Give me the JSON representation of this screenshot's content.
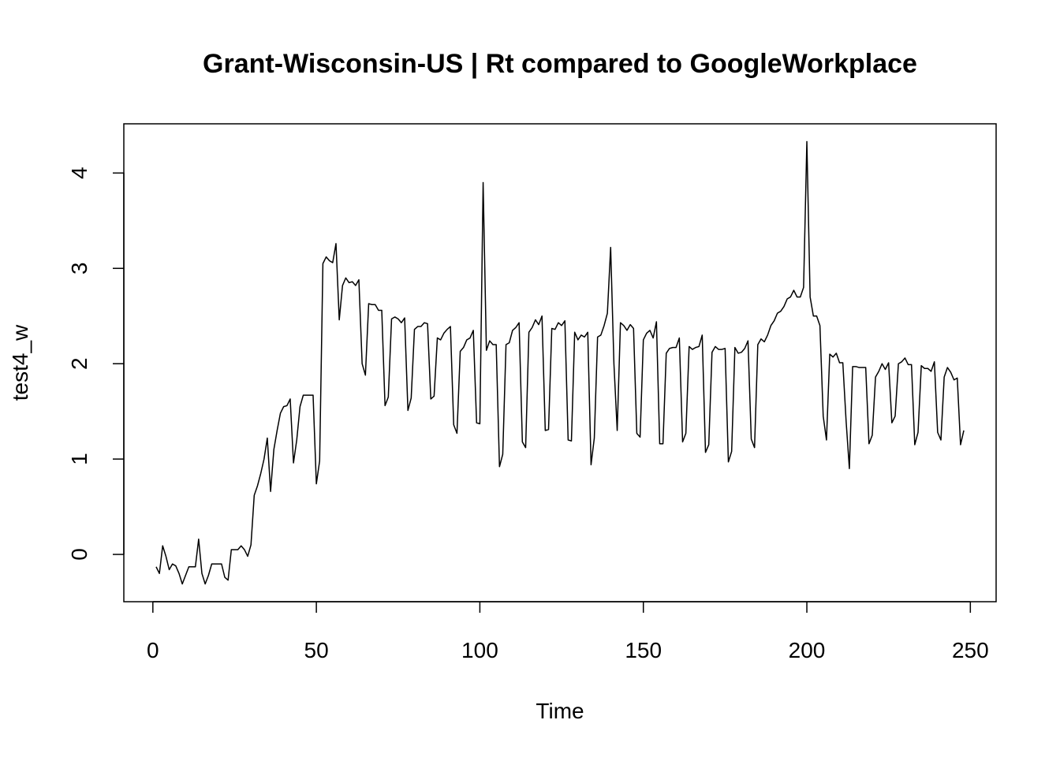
{
  "chart_data": {
    "type": "line",
    "title": "Grant-Wisconsin-US | Rt compared to GoogleWorkplace",
    "x_label": "Time",
    "y_label": "test4_w",
    "color": "#000000",
    "x": [
      1,
      2,
      3,
      4,
      5,
      6,
      7,
      8,
      9,
      10,
      11,
      12,
      13,
      14,
      15,
      16,
      17,
      18,
      19,
      20,
      21,
      22,
      23,
      24,
      25,
      26,
      27,
      28,
      29,
      30,
      31,
      32,
      33,
      34,
      35,
      36,
      37,
      38,
      39,
      40,
      41,
      42,
      43,
      44,
      45,
      46,
      47,
      48,
      49,
      50,
      51,
      52,
      53,
      54,
      55,
      56,
      57,
      58,
      59,
      60,
      61,
      62,
      63,
      64,
      65,
      66,
      67,
      68,
      69,
      70,
      71,
      72,
      73,
      74,
      75,
      76,
      77,
      78,
      79,
      80,
      81,
      82,
      83,
      84,
      85,
      86,
      87,
      88,
      89,
      90,
      91,
      92,
      93,
      94,
      95,
      96,
      97,
      98,
      99,
      100,
      101,
      102,
      103,
      104,
      105,
      106,
      107,
      108,
      109,
      110,
      111,
      112,
      113,
      114,
      115,
      116,
      117,
      118,
      119,
      120,
      121,
      122,
      123,
      124,
      125,
      126,
      127,
      128,
      129,
      130,
      131,
      132,
      133,
      134,
      135,
      136,
      137,
      138,
      139,
      140,
      141,
      142,
      143,
      144,
      145,
      146,
      147,
      148,
      149,
      150,
      151,
      152,
      153,
      154,
      155,
      156,
      157,
      158,
      159,
      160,
      161,
      162,
      163,
      164,
      165,
      166,
      167,
      168,
      169,
      170,
      171,
      172,
      173,
      174,
      175,
      176,
      177,
      178,
      179,
      180,
      181,
      182,
      183,
      184,
      185,
      186,
      187,
      188,
      189,
      190,
      191,
      192,
      193,
      194,
      195,
      196,
      197,
      198,
      199,
      200,
      201,
      202,
      203,
      204,
      205,
      206,
      207,
      208,
      209,
      210,
      211,
      212,
      213,
      214,
      215,
      216,
      217,
      218,
      219,
      220,
      221,
      222,
      223,
      224,
      225,
      226,
      227,
      228,
      229,
      230,
      231,
      232,
      233,
      234,
      235,
      236,
      237,
      238,
      239,
      240,
      241,
      242,
      243,
      244,
      245,
      246,
      247,
      248
    ],
    "values": [
      -0.13,
      -0.2,
      0.09,
      -0.02,
      -0.16,
      -0.1,
      -0.12,
      -0.2,
      -0.31,
      -0.22,
      -0.13,
      -0.13,
      -0.13,
      0.16,
      -0.2,
      -0.31,
      -0.22,
      -0.1,
      -0.1,
      -0.1,
      -0.1,
      -0.24,
      -0.27,
      0.05,
      0.05,
      0.05,
      0.09,
      0.05,
      -0.02,
      0.1,
      0.62,
      0.72,
      0.85,
      1.0,
      1.22,
      0.66,
      1.1,
      1.3,
      1.48,
      1.55,
      1.56,
      1.63,
      0.96,
      1.2,
      1.55,
      1.67,
      1.67,
      1.67,
      1.67,
      0.74,
      0.98,
      3.05,
      3.12,
      3.08,
      3.06,
      3.26,
      2.46,
      2.82,
      2.9,
      2.85,
      2.86,
      2.82,
      2.88,
      2.0,
      1.88,
      2.63,
      2.62,
      2.62,
      2.56,
      2.56,
      1.56,
      1.65,
      2.47,
      2.49,
      2.47,
      2.43,
      2.48,
      1.51,
      1.64,
      2.36,
      2.39,
      2.39,
      2.43,
      2.42,
      1.63,
      1.66,
      2.27,
      2.25,
      2.32,
      2.36,
      2.39,
      1.36,
      1.27,
      2.13,
      2.17,
      2.25,
      2.27,
      2.35,
      1.38,
      1.37,
      3.9,
      2.14,
      2.24,
      2.2,
      2.2,
      0.92,
      1.05,
      2.2,
      2.22,
      2.35,
      2.38,
      2.43,
      1.18,
      1.12,
      2.33,
      2.38,
      2.46,
      2.41,
      2.5,
      1.3,
      1.31,
      2.37,
      2.36,
      2.43,
      2.4,
      2.45,
      1.2,
      1.19,
      2.33,
      2.25,
      2.3,
      2.28,
      2.33,
      0.94,
      1.22,
      2.28,
      2.3,
      2.4,
      2.53,
      3.22,
      2.0,
      1.3,
      2.43,
      2.4,
      2.35,
      2.41,
      2.37,
      1.27,
      1.23,
      2.25,
      2.32,
      2.35,
      2.27,
      2.44,
      1.16,
      1.16,
      2.11,
      2.16,
      2.17,
      2.17,
      2.27,
      1.18,
      1.27,
      2.18,
      2.15,
      2.17,
      2.18,
      2.3,
      1.07,
      1.15,
      2.12,
      2.18,
      2.15,
      2.15,
      2.16,
      0.97,
      1.08,
      2.17,
      2.11,
      2.12,
      2.16,
      2.24,
      1.21,
      1.12,
      2.2,
      2.26,
      2.23,
      2.3,
      2.4,
      2.45,
      2.53,
      2.55,
      2.6,
      2.68,
      2.7,
      2.77,
      2.7,
      2.7,
      2.8,
      4.33,
      2.7,
      2.5,
      2.5,
      2.4,
      1.45,
      1.2,
      2.1,
      2.07,
      2.11,
      2.01,
      2.01,
      1.4,
      0.9,
      1.97,
      1.97,
      1.96,
      1.96,
      1.96,
      1.16,
      1.25,
      1.86,
      1.92,
      2.0,
      1.94,
      2.01,
      1.38,
      1.45,
      2.0,
      2.02,
      2.06,
      1.99,
      1.99,
      1.15,
      1.28,
      1.98,
      1.95,
      1.95,
      1.92,
      2.02,
      1.28,
      1.2,
      1.86,
      1.96,
      1.91,
      1.83,
      1.85,
      1.15,
      1.3
    ],
    "xlim": [
      -8.88,
      257.88
    ],
    "ylim": [
      -0.496,
      4.516
    ],
    "xticks": [
      0,
      50,
      100,
      150,
      200,
      250
    ],
    "yticks": [
      0,
      1,
      2,
      3,
      4
    ]
  }
}
